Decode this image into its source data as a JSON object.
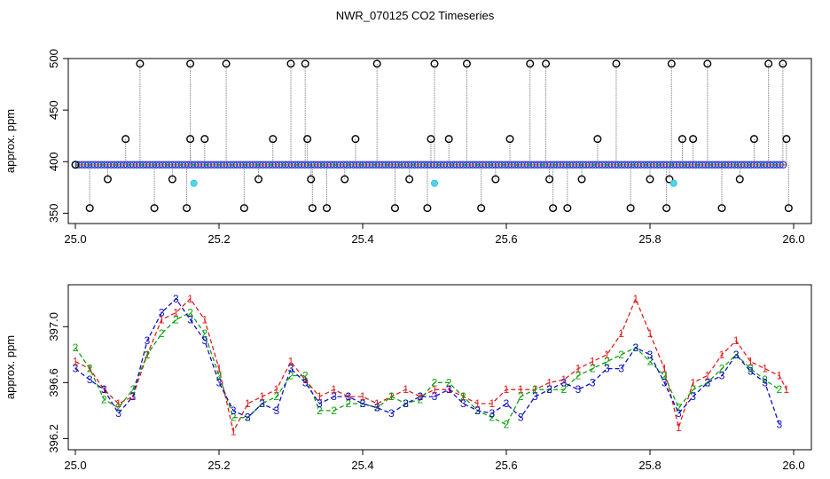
{
  "title": "NWR_070125  CO2 Timeseries",
  "chart_data": [
    {
      "type": "scatter",
      "ylabel": "approx. ppm",
      "xlabel": "",
      "xlim": [
        25.0,
        26.0
      ],
      "ylim": [
        340,
        500
      ],
      "xticks": [
        "25.0",
        "25.2",
        "25.4",
        "25.6",
        "25.8",
        "26.0"
      ],
      "xtick_values": [
        25.0,
        25.2,
        25.4,
        25.6,
        25.8,
        26.0
      ],
      "yticks": [
        "350",
        "400",
        "450",
        "500"
      ],
      "ytick_values": [
        350,
        400,
        450,
        500
      ],
      "grid": false,
      "baseline_value": 397,
      "series": [
        {
          "color": "#000000",
          "marker": "open-circle",
          "x": [
            25.0,
            25.02,
            25.045,
            25.07,
            25.09,
            25.11,
            25.135,
            25.155,
            25.16,
            25.16,
            25.18,
            25.21,
            25.235,
            25.255,
            25.275,
            25.3,
            25.32,
            25.323,
            25.328,
            25.33,
            25.35,
            25.375,
            25.39,
            25.42,
            25.445,
            25.465,
            25.49,
            25.495,
            25.5,
            25.52,
            25.545,
            25.565,
            25.585,
            25.605,
            25.633,
            25.655,
            25.66,
            25.665,
            25.685,
            25.705,
            25.727,
            25.753,
            25.773,
            25.8,
            25.823,
            25.827,
            25.83,
            25.845,
            25.86,
            25.88,
            25.9,
            25.925,
            25.945,
            25.965,
            25.985,
            25.99,
            25.993
          ],
          "y": [
            397,
            355,
            383,
            422,
            495,
            355,
            383,
            355,
            422,
            495,
            422,
            495,
            355,
            383,
            422,
            495,
            495,
            422,
            383,
            355,
            355,
            383,
            422,
            495,
            355,
            383,
            355,
            422,
            495,
            422,
            495,
            355,
            383,
            422,
            495,
            495,
            383,
            355,
            355,
            383,
            422,
            495,
            355,
            383,
            355,
            383,
            495,
            422,
            422,
            495,
            355,
            383,
            422,
            495,
            495,
            422,
            355
          ]
        },
        {
          "color": "#4fd6e6",
          "marker": "filled-circle",
          "x": [
            25.165,
            25.5,
            25.833
          ],
          "y": [
            379,
            379,
            379
          ]
        }
      ]
    },
    {
      "type": "line",
      "ylabel": "approx. ppm",
      "xlabel": "",
      "xlim": [
        25.0,
        26.0
      ],
      "ylim": [
        396.12,
        397.3
      ],
      "xticks": [
        "25.0",
        "25.2",
        "25.4",
        "25.6",
        "25.8",
        "26.0"
      ],
      "xtick_values": [
        25.0,
        25.2,
        25.4,
        25.6,
        25.8,
        26.0
      ],
      "yticks": [
        "396.2",
        "396.6",
        "397.0"
      ],
      "ytick_values": [
        396.2,
        396.6,
        397.0
      ],
      "grid": false,
      "markers": "digits 1 / 2 / 3",
      "series": [
        {
          "marker": "1",
          "color": "#e02020",
          "x": [
            25.0,
            25.02,
            25.04,
            25.06,
            25.08,
            25.1,
            25.12,
            25.14,
            25.16,
            25.18,
            25.2,
            25.22,
            25.24,
            25.26,
            25.28,
            25.3,
            25.32,
            25.34,
            25.36,
            25.38,
            25.4,
            25.42,
            25.44,
            25.46,
            25.48,
            25.5,
            25.52,
            25.54,
            25.56,
            25.58,
            25.6,
            25.62,
            25.64,
            25.66,
            25.68,
            25.7,
            25.72,
            25.74,
            25.76,
            25.78,
            25.8,
            25.82,
            25.84,
            25.86,
            25.88,
            25.9,
            25.92,
            25.94,
            25.96,
            25.98,
            25.99
          ],
          "y": [
            396.75,
            396.7,
            396.55,
            396.45,
            396.5,
            396.8,
            397.05,
            397.1,
            397.2,
            397.05,
            396.7,
            396.25,
            396.45,
            396.5,
            396.55,
            396.75,
            396.62,
            396.5,
            396.55,
            396.5,
            396.5,
            396.45,
            396.5,
            396.55,
            396.5,
            396.55,
            396.55,
            396.5,
            396.45,
            396.45,
            396.55,
            396.55,
            396.55,
            396.6,
            396.62,
            396.7,
            396.75,
            396.8,
            396.95,
            397.2,
            396.95,
            396.7,
            396.28,
            396.6,
            396.65,
            396.8,
            396.9,
            396.75,
            396.7,
            396.65,
            396.55
          ]
        },
        {
          "marker": "2",
          "color": "#10a010",
          "x": [
            25.0,
            25.02,
            25.04,
            25.06,
            25.08,
            25.1,
            25.12,
            25.14,
            25.16,
            25.18,
            25.2,
            25.22,
            25.24,
            25.26,
            25.28,
            25.3,
            25.32,
            25.34,
            25.36,
            25.38,
            25.4,
            25.42,
            25.44,
            25.46,
            25.48,
            25.5,
            25.52,
            25.54,
            25.56,
            25.58,
            25.6,
            25.62,
            25.64,
            25.66,
            25.68,
            25.7,
            25.72,
            25.74,
            25.76,
            25.78,
            25.8,
            25.82,
            25.84,
            25.86,
            25.88,
            25.9,
            25.92,
            25.94,
            25.96,
            25.98
          ],
          "y": [
            396.85,
            396.7,
            396.48,
            396.42,
            396.55,
            396.8,
            396.95,
            397.05,
            397.1,
            396.95,
            396.65,
            396.35,
            396.35,
            396.45,
            396.5,
            396.65,
            396.65,
            396.4,
            396.4,
            396.45,
            396.45,
            396.42,
            396.5,
            396.45,
            396.48,
            396.6,
            396.6,
            396.5,
            396.4,
            396.35,
            396.3,
            396.5,
            396.55,
            396.55,
            396.55,
            396.65,
            396.7,
            396.75,
            396.8,
            396.85,
            396.75,
            396.65,
            396.42,
            396.55,
            396.6,
            396.7,
            396.8,
            396.7,
            396.62,
            396.55
          ]
        },
        {
          "marker": "3",
          "color": "#1010c0",
          "x": [
            25.0,
            25.02,
            25.04,
            25.06,
            25.08,
            25.1,
            25.12,
            25.14,
            25.16,
            25.18,
            25.2,
            25.22,
            25.24,
            25.26,
            25.28,
            25.3,
            25.32,
            25.34,
            25.36,
            25.38,
            25.4,
            25.42,
            25.44,
            25.46,
            25.48,
            25.5,
            25.52,
            25.54,
            25.56,
            25.58,
            25.6,
            25.62,
            25.64,
            25.66,
            25.68,
            25.7,
            25.72,
            25.74,
            25.76,
            25.78,
            25.8,
            25.82,
            25.84,
            25.86,
            25.88,
            25.9,
            25.92,
            25.94,
            25.96,
            25.98
          ],
          "y": [
            396.7,
            396.62,
            396.55,
            396.38,
            396.5,
            396.9,
            397.1,
            397.2,
            397.05,
            396.9,
            396.6,
            396.4,
            396.35,
            396.45,
            396.4,
            396.7,
            396.6,
            396.45,
            396.5,
            396.5,
            396.45,
            396.42,
            396.38,
            396.45,
            396.5,
            396.5,
            396.55,
            396.45,
            396.4,
            396.38,
            396.45,
            396.35,
            396.5,
            396.55,
            396.6,
            396.55,
            396.6,
            396.7,
            396.7,
            396.85,
            396.8,
            396.6,
            396.38,
            396.5,
            396.6,
            396.65,
            396.8,
            396.68,
            396.6,
            396.3
          ]
        }
      ]
    }
  ]
}
